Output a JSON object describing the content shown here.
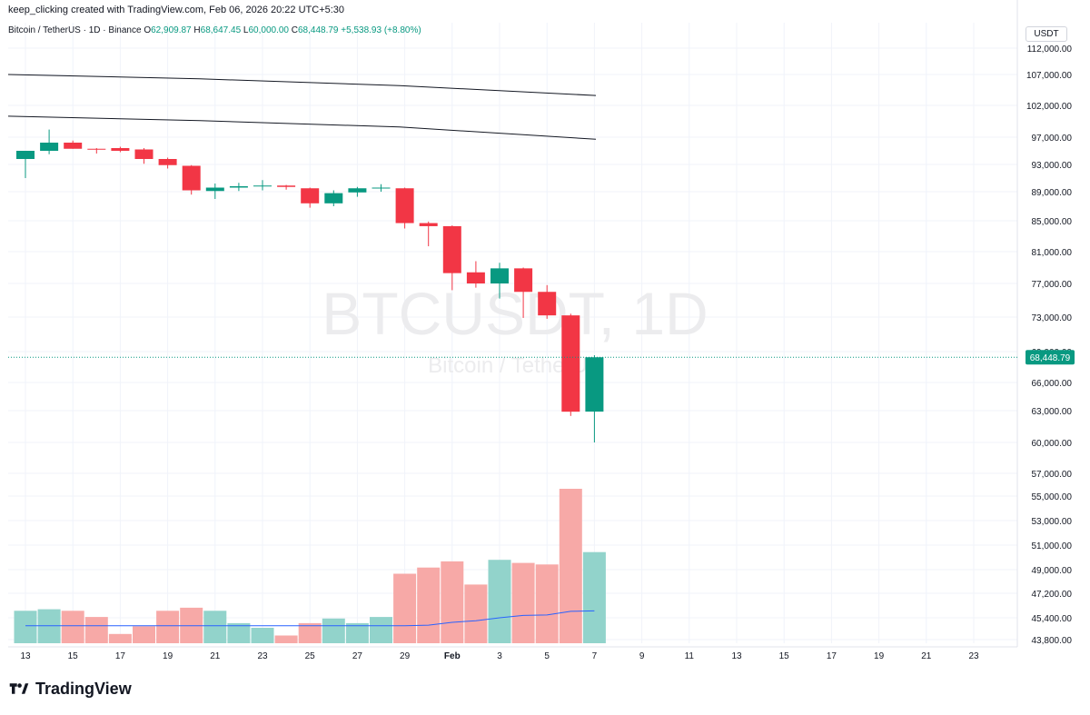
{
  "header": {
    "credit": "keep_clicking created with TradingView.com, Feb 06, 2026 20:22 UTC+5:30"
  },
  "legend": {
    "symbol": "Bitcoin / TetherUS · 1D · Binance",
    "open_label": "O",
    "open_value": "62,909.87",
    "high_label": "H",
    "high_value": "68,647.45",
    "low_label": "L",
    "low_value": "60,000.00",
    "close_label": "C",
    "close_value": "68,448.79",
    "change": "+5,538.93 (+8.80%)"
  },
  "currency_button": "USDT",
  "watermark": {
    "ticker": "BTCUSDT, 1D",
    "name": "Bitcoin / TetherUS"
  },
  "last_price_label": "68,448.79",
  "footer": {
    "brand": "TradingView"
  },
  "colors": {
    "up": "#089981",
    "down": "#f23645",
    "vol_up": "#92d3cb",
    "vol_down": "#f7a9a7",
    "ma": "#2962ff"
  },
  "chart_data": {
    "type": "candlestick",
    "y_ticks": [
      "112,000.00",
      "107,000.00",
      "102,000.00",
      "97,000.00",
      "93,000.00",
      "89,000.00",
      "85,000.00",
      "81,000.00",
      "77,000.00",
      "73,000.00",
      "69,000.00",
      "66,000.00",
      "63,000.00",
      "60,000.00",
      "57,000.00",
      "55,000.00",
      "53,000.00",
      "51,000.00",
      "49,000.00",
      "47,200.00",
      "45,400.00",
      "43,800.00"
    ],
    "x_ticks": [
      "13",
      "15",
      "17",
      "19",
      "21",
      "23",
      "25",
      "27",
      "29",
      "Feb",
      "3",
      "5",
      "7",
      "9",
      "11",
      "13",
      "15",
      "17",
      "19",
      "21",
      "23"
    ],
    "candles": [
      {
        "o": 93800,
        "h": 95000,
        "l": 91000,
        "c": 95000
      },
      {
        "o": 95000,
        "h": 98200,
        "l": 94500,
        "c": 96200
      },
      {
        "o": 96200,
        "h": 96500,
        "l": 95300,
        "c": 95300
      },
      {
        "o": 95300,
        "h": 95400,
        "l": 94600,
        "c": 95200
      },
      {
        "o": 95400,
        "h": 95600,
        "l": 94800,
        "c": 95000
      },
      {
        "o": 95200,
        "h": 95400,
        "l": 93100,
        "c": 93800
      },
      {
        "o": 93800,
        "h": 94000,
        "l": 92400,
        "c": 92900
      },
      {
        "o": 92800,
        "h": 92900,
        "l": 88600,
        "c": 89200
      },
      {
        "o": 89100,
        "h": 90200,
        "l": 88000,
        "c": 89600
      },
      {
        "o": 89600,
        "h": 90300,
        "l": 89100,
        "c": 89800
      },
      {
        "o": 89800,
        "h": 90700,
        "l": 89200,
        "c": 89900
      },
      {
        "o": 89900,
        "h": 90000,
        "l": 89300,
        "c": 89700
      },
      {
        "o": 89500,
        "h": 89600,
        "l": 86800,
        "c": 87400
      },
      {
        "o": 87400,
        "h": 89200,
        "l": 87000,
        "c": 88800
      },
      {
        "o": 88900,
        "h": 89700,
        "l": 88300,
        "c": 89500
      },
      {
        "o": 89500,
        "h": 90100,
        "l": 89000,
        "c": 89600
      },
      {
        "o": 89500,
        "h": 89600,
        "l": 84000,
        "c": 84700
      },
      {
        "o": 84700,
        "h": 84900,
        "l": 81700,
        "c": 84300
      },
      {
        "o": 84300,
        "h": 84400,
        "l": 76200,
        "c": 78300
      },
      {
        "o": 78400,
        "h": 79800,
        "l": 76500,
        "c": 77000
      },
      {
        "o": 77000,
        "h": 79600,
        "l": 75200,
        "c": 78900
      },
      {
        "o": 78900,
        "h": 79000,
        "l": 72900,
        "c": 76000
      },
      {
        "o": 76000,
        "h": 76800,
        "l": 72800,
        "c": 73200
      },
      {
        "o": 73200,
        "h": 73400,
        "l": 62500,
        "c": 62900
      },
      {
        "o": 62909.87,
        "h": 68647.45,
        "l": 60000.0,
        "c": 68448.79
      }
    ],
    "volumes": [
      0.21,
      0.22,
      0.21,
      0.17,
      0.06,
      0.11,
      0.21,
      0.23,
      0.21,
      0.13,
      0.1,
      0.05,
      0.13,
      0.16,
      0.13,
      0.17,
      0.45,
      0.49,
      0.53,
      0.38,
      0.54,
      0.52,
      0.51,
      1.0,
      0.59
    ],
    "upper_line": [
      107000,
      106300,
      105200,
      103600
    ],
    "lower_line": [
      100300,
      99600,
      98600,
      96700
    ]
  }
}
